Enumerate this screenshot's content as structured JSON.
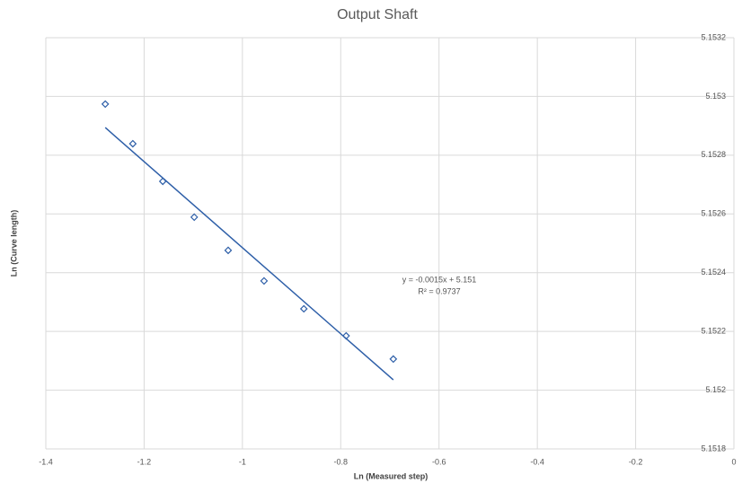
{
  "chart_data": {
    "type": "scatter",
    "title": "Output Shaft",
    "x_label": "Ln (Measured step)",
    "y_label": "Ln (Curve length)",
    "series": [
      {
        "name": "Output Shaft",
        "color": "#2e5fa8",
        "x": [
          -1.279,
          -1.223,
          -1.162,
          -1.098,
          -1.029,
          -0.956,
          -0.875,
          -0.789,
          -0.693
        ],
        "values": [
          5.152974,
          5.152839,
          5.152711,
          5.152589,
          5.152476,
          5.152372,
          5.152277,
          5.152185,
          5.152106
        ]
      }
    ],
    "trendline": {
      "color": "#2e5fa8",
      "x": [
        -1.279,
        -0.693
      ],
      "values": [
        5.152894,
        5.152035
      ],
      "equation": "y = -0.0015x + 5.151",
      "r_squared": "R² = 0.9737"
    },
    "xlim": [
      -1.4,
      0
    ],
    "xticks": [
      -1.4,
      -1.2,
      -1,
      -0.8,
      -0.6,
      -0.4,
      -0.2,
      0
    ],
    "ylim": [
      5.1518,
      5.1532
    ],
    "yticks": [
      5.1518,
      5.152,
      5.1522,
      5.1524,
      5.1526,
      5.1528,
      5.153,
      5.1532
    ],
    "grid": true
  }
}
